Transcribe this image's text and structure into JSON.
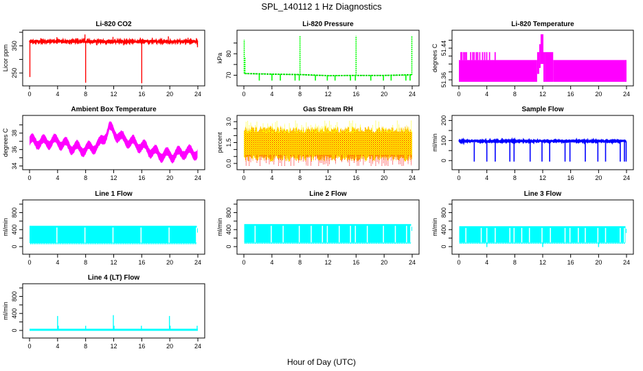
{
  "figure": {
    "title": "SPL_140112  1 Hz Diagnostics",
    "xlabel": "Hour of Day (UTC)"
  },
  "chart_data": [
    {
      "id": "co2",
      "type": "line",
      "title": "Li-820 CO2",
      "ylabel": "Licor ppm",
      "color": "#ff0000",
      "xlim": [
        0,
        24
      ],
      "ylim": [
        210,
        400
      ],
      "yticks": [
        250,
        300,
        350,
        400
      ],
      "ytick_labels": [
        "250",
        "",
        "350",
        ""
      ],
      "xticks": [
        0,
        4,
        8,
        12,
        16,
        20,
        24
      ],
      "baseline": 366,
      "noise": 3,
      "spikes": [
        {
          "x": 0.05,
          "y": 235
        },
        {
          "x": 0.1,
          "y": 370
        },
        {
          "x": 1.6,
          "y": 378
        },
        {
          "x": 2.2,
          "y": 356
        },
        {
          "x": 3.9,
          "y": 382
        },
        {
          "x": 4.2,
          "y": 374
        },
        {
          "x": 5.6,
          "y": 357
        },
        {
          "x": 6.8,
          "y": 378
        },
        {
          "x": 7.9,
          "y": 392
        },
        {
          "x": 8.0,
          "y": 214
        },
        {
          "x": 9.6,
          "y": 352
        },
        {
          "x": 11.9,
          "y": 383
        },
        {
          "x": 13.4,
          "y": 352
        },
        {
          "x": 15.8,
          "y": 380
        },
        {
          "x": 16.0,
          "y": 212
        },
        {
          "x": 17.5,
          "y": 380
        },
        {
          "x": 19.8,
          "y": 385
        },
        {
          "x": 21.5,
          "y": 355
        },
        {
          "x": 22.6,
          "y": 380
        },
        {
          "x": 23.8,
          "y": 378
        },
        {
          "x": 23.95,
          "y": 345
        }
      ]
    },
    {
      "id": "pressure",
      "type": "line",
      "title": "Li-820 Pressure",
      "ylabel": "kPa",
      "color": "#00ff00",
      "xlim": [
        0,
        24
      ],
      "ylim": [
        66,
        90
      ],
      "yticks": [
        70,
        75,
        80,
        85
      ],
      "ytick_labels": [
        "70",
        "",
        "80",
        ""
      ],
      "xticks": [
        0,
        4,
        8,
        12,
        16,
        20,
        24
      ],
      "baseline_points": [
        [
          0.1,
          70.8
        ],
        [
          4,
          70.5
        ],
        [
          8,
          70.3
        ],
        [
          12,
          69.8
        ],
        [
          16,
          69.9
        ],
        [
          20,
          69.9
        ],
        [
          24,
          70.2
        ]
      ],
      "spikes_up": [
        {
          "x": 0.05,
          "y": 86.5
        },
        {
          "x": 0.15,
          "y": 78.5
        },
        {
          "x": 8.0,
          "y": 88.3
        },
        {
          "x": 16.0,
          "y": 88.3
        },
        {
          "x": 23.95,
          "y": 88.5
        }
      ],
      "dips": [
        2.2,
        4.0,
        5.2,
        7.3,
        7.9,
        10.2,
        11.9,
        13.0,
        15.2,
        15.9,
        18.1,
        19.9,
        21.0,
        23.1,
        23.7
      ],
      "dip_value": 67.5
    },
    {
      "id": "licor-temp",
      "type": "area",
      "title": "Li-820 Temperature",
      "ylabel": "degrees C",
      "color": "#ff00ff",
      "xlim": [
        0,
        24
      ],
      "ylim": [
        51.35,
        51.48
      ],
      "yticks": [
        51.36,
        51.38,
        51.4,
        51.42,
        51.44,
        51.46
      ],
      "ytick_labels": [
        "51.36",
        "",
        "",
        "",
        "51.44",
        ""
      ],
      "xticks": [
        0,
        4,
        8,
        12,
        16,
        20,
        24
      ],
      "low": 51.355,
      "high": 51.41,
      "segments": [
        {
          "x0": 0.0,
          "x1": 11.2,
          "lo": 51.355,
          "hi": 51.41
        },
        {
          "x0": 11.2,
          "x1": 11.5,
          "lo": 51.375,
          "hi": 51.43
        },
        {
          "x0": 11.5,
          "x1": 11.7,
          "lo": 51.39,
          "hi": 51.45
        },
        {
          "x0": 11.7,
          "x1": 12.1,
          "lo": 51.4,
          "hi": 51.475
        },
        {
          "x0": 12.1,
          "x1": 12.3,
          "lo": 51.355,
          "hi": 51.43
        },
        {
          "x0": 12.3,
          "x1": 13.5,
          "lo": 51.355,
          "hi": 51.43
        },
        {
          "x0": 13.5,
          "x1": 24.0,
          "lo": 51.355,
          "hi": 51.41
        }
      ],
      "upper_flicker": [
        0.2,
        0.35,
        0.6,
        0.8,
        1.0,
        1.6,
        1.9,
        2.1,
        2.4,
        2.6,
        2.9,
        3.3,
        3.6,
        3.9,
        4.3,
        5.1
      ]
    },
    {
      "id": "box-temp",
      "type": "line",
      "title": "Ambient Box Temperature",
      "ylabel": "degrees C",
      "color": "#ff00ff",
      "xlim": [
        0,
        24
      ],
      "ylim": [
        33.8,
        39.9
      ],
      "yticks": [
        34,
        35,
        36,
        37,
        38,
        39
      ],
      "ytick_labels": [
        "34",
        "",
        "36",
        "",
        "38",
        ""
      ],
      "xticks": [
        0,
        4,
        8,
        12,
        16,
        20,
        24
      ],
      "trend": [
        [
          0,
          37.0
        ],
        [
          2,
          36.9
        ],
        [
          4,
          37.0
        ],
        [
          6,
          36.3
        ],
        [
          8,
          36.0
        ],
        [
          10,
          36.6
        ],
        [
          11.4,
          38.6
        ],
        [
          13,
          37.4
        ],
        [
          16,
          36.4
        ],
        [
          18.5,
          35.4
        ],
        [
          20.5,
          35.3
        ],
        [
          22,
          35.7
        ],
        [
          24,
          35.6
        ]
      ],
      "oscillation_amplitude": 0.75,
      "oscillation_period_hours": 1.6,
      "band_width": 0.9
    },
    {
      "id": "rh",
      "type": "area",
      "title": "Gas Stream RH",
      "ylabel": "percent",
      "colors": [
        "#ffff00",
        "#ff0000"
      ],
      "xlim": [
        0,
        24
      ],
      "ylim": [
        -0.3,
        3.3
      ],
      "yticks": [
        0.0,
        0.5,
        1.0,
        1.5,
        2.0,
        2.5,
        3.0
      ],
      "ytick_labels": [
        "0.0",
        "",
        "",
        "1.5",
        "",
        "",
        "3.0"
      ],
      "xticks": [
        0,
        4,
        8,
        12,
        16,
        20,
        24
      ],
      "mean": 1.5,
      "band_low": 0.6,
      "band_high": 2.2,
      "max": 3.1,
      "min": -0.2
    },
    {
      "id": "sample-flow",
      "type": "line",
      "title": "Sample Flow",
      "ylabel": "ml/min",
      "color": "#0000ff",
      "xlim": [
        0,
        24
      ],
      "ylim": [
        -35,
        215
      ],
      "yticks": [
        0,
        50,
        100,
        150,
        200
      ],
      "ytick_labels": [
        "0",
        "",
        "100",
        "",
        "200"
      ],
      "xticks": [
        0,
        4,
        8,
        12,
        16,
        20,
        24
      ],
      "baseline": 97,
      "dips": [
        2.2,
        4.0,
        5.2,
        7.3,
        7.9,
        10.2,
        11.9,
        13.0,
        15.2,
        15.9,
        18.1,
        19.9,
        21.0,
        23.1,
        23.7,
        23.95
      ],
      "dip_value": -5
    },
    {
      "id": "line1-flow",
      "type": "area",
      "title": "Line 1 Flow",
      "ylabel": "ml/min",
      "color": "#00ffff",
      "xlim": [
        0,
        24
      ],
      "ylim": [
        -130,
        1050
      ],
      "yticks": [
        0,
        200,
        400,
        600,
        800,
        1000
      ],
      "ytick_labels": [
        "0",
        "",
        "400",
        "",
        "800",
        ""
      ],
      "xticks": [
        0,
        4,
        8,
        12,
        16,
        20,
        24
      ],
      "low": 80,
      "high": 490,
      "gaps": [
        3.9,
        7.9,
        11.9,
        15.9,
        19.9,
        23.8
      ]
    },
    {
      "id": "line2-flow",
      "type": "area",
      "title": "Line 2 Flow",
      "ylabel": "ml/min",
      "color": "#00ffff",
      "xlim": [
        0,
        24
      ],
      "ylim": [
        -130,
        1050
      ],
      "yticks": [
        0,
        200,
        400,
        600,
        800,
        1000
      ],
      "ytick_labels": [
        "0",
        "",
        "400",
        "",
        "800",
        ""
      ],
      "xticks": [
        0,
        4,
        8,
        12,
        16,
        20,
        24
      ],
      "low": 90,
      "high": 530,
      "gaps": [
        1.6,
        3.9,
        5.6,
        7.9,
        9.6,
        11.2,
        11.9,
        13.6,
        15.2,
        15.9,
        17.6,
        19.9,
        21.6,
        23.2,
        23.8
      ]
    },
    {
      "id": "line3-flow",
      "type": "area",
      "title": "Line 3 Flow",
      "ylabel": "ml/min",
      "color": "#00ffff",
      "xlim": [
        0,
        24
      ],
      "ylim": [
        -130,
        1050
      ],
      "yticks": [
        0,
        200,
        400,
        600,
        800,
        1000
      ],
      "ytick_labels": [
        "0",
        "",
        "400",
        "",
        "800",
        ""
      ],
      "xticks": [
        0,
        4,
        8,
        12,
        16,
        20,
        24
      ],
      "low": 90,
      "high": 480,
      "gaps": [
        1.0,
        3.2,
        4.0,
        5.2,
        7.3,
        7.9,
        9.0,
        10.1,
        11.9,
        13.1,
        15.2,
        15.9,
        17.1,
        18.1,
        19.9,
        21.0,
        23.1,
        23.7
      ],
      "dips": [
        {
          "x": 4.0,
          "y": -10
        },
        {
          "x": 12.0,
          "y": -10
        },
        {
          "x": 20.0,
          "y": -10
        }
      ]
    },
    {
      "id": "line4-flow",
      "type": "line",
      "title": "Line 4 (LT) Flow",
      "ylabel": "ml/min",
      "color": "#00ffff",
      "xlim": [
        0,
        24
      ],
      "ylim": [
        -130,
        1050
      ],
      "yticks": [
        0,
        200,
        400,
        600,
        800,
        1000
      ],
      "ytick_labels": [
        "0",
        "",
        "400",
        "",
        "800",
        ""
      ],
      "xticks": [
        0,
        4,
        8,
        12,
        16,
        20,
        24
      ],
      "baseline": 15,
      "spikes": [
        {
          "x": 4.0,
          "y": 340
        },
        {
          "x": 4.1,
          "y": 110
        },
        {
          "x": 8.0,
          "y": 110
        },
        {
          "x": 11.95,
          "y": 360
        },
        {
          "x": 12.05,
          "y": 110
        },
        {
          "x": 15.95,
          "y": 110
        },
        {
          "x": 19.95,
          "y": 340
        },
        {
          "x": 20.05,
          "y": 110
        },
        {
          "x": 23.9,
          "y": 110
        }
      ]
    }
  ]
}
